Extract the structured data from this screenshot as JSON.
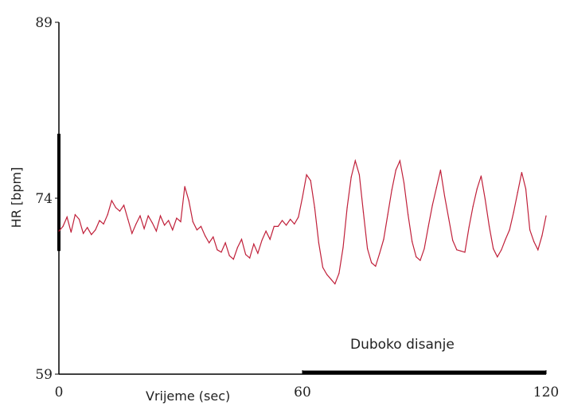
{
  "chart_data": {
    "type": "line",
    "title": "",
    "xlabel": "Vrijeme (sec)",
    "ylabel": "HR [bpm]",
    "xlim": [
      0,
      120
    ],
    "ylim": [
      59,
      89
    ],
    "xticks": [
      "0",
      "60",
      "120"
    ],
    "yticks": [
      "59",
      "74",
      "89"
    ],
    "grid": false,
    "colors": {
      "line": "#c0203a",
      "axis": "#000000",
      "bars": "#000000"
    },
    "annotations": [
      {
        "text": "Duboko disanje",
        "x_start": 60,
        "x_end": 120,
        "y": 59
      }
    ],
    "y_marker": {
      "y_start": 69.5,
      "y_end": 79.5
    },
    "series": [
      {
        "x": [
          0,
          1,
          2,
          3,
          4,
          5,
          6,
          7,
          8,
          9,
          10,
          11,
          12,
          13,
          14,
          15,
          16,
          17,
          18,
          19,
          20,
          21,
          22,
          23,
          24,
          25,
          26,
          27,
          28,
          29,
          30,
          31,
          32,
          33,
          34,
          35,
          36,
          37,
          38,
          39,
          40,
          41,
          42,
          43,
          44,
          45,
          46,
          47,
          48,
          49,
          50,
          51,
          52,
          53,
          54,
          55,
          56,
          57,
          58,
          59,
          60,
          61,
          62,
          63,
          64,
          65,
          66,
          67,
          68,
          69,
          70,
          71,
          72,
          73,
          74,
          75,
          76,
          77,
          78,
          79,
          80,
          81,
          82,
          83,
          84,
          85,
          86,
          87,
          88,
          89,
          90,
          91,
          92,
          93,
          94,
          95,
          96,
          97,
          98,
          99,
          100,
          101,
          102,
          103,
          104,
          105,
          106,
          107,
          108,
          109,
          110,
          111,
          112,
          113,
          114,
          115,
          116,
          117,
          118,
          119,
          120
        ],
        "values": [
          71.2,
          71.6,
          72.4,
          71.1,
          72.6,
          72.2,
          71.0,
          71.5,
          70.9,
          71.3,
          72.1,
          71.8,
          72.6,
          73.8,
          73.2,
          72.9,
          73.4,
          72.2,
          71.0,
          71.8,
          72.5,
          71.4,
          72.5,
          71.9,
          71.2,
          72.5,
          71.7,
          72.1,
          71.3,
          72.3,
          72.0,
          75.0,
          73.8,
          72.0,
          71.3,
          71.6,
          70.8,
          70.2,
          70.7,
          69.6,
          69.4,
          70.2,
          69.1,
          68.8,
          69.8,
          70.5,
          69.2,
          68.9,
          70.1,
          69.3,
          70.4,
          71.2,
          70.5,
          71.6,
          71.6,
          72.1,
          71.7,
          72.2,
          71.8,
          72.4,
          74.1,
          76.0,
          75.5,
          73.2,
          70.2,
          68.1,
          67.5,
          67.1,
          66.7,
          67.6,
          69.8,
          73.2,
          75.8,
          77.2,
          76.0,
          72.8,
          69.7,
          68.5,
          68.2,
          69.3,
          70.5,
          72.6,
          74.7,
          76.4,
          77.2,
          75.3,
          72.6,
          70.3,
          69.0,
          68.7,
          69.7,
          71.6,
          73.4,
          74.9,
          76.4,
          74.2,
          72.3,
          70.4,
          69.6,
          69.5,
          69.4,
          71.5,
          73.3,
          74.8,
          75.9,
          73.9,
          71.6,
          69.7,
          69.0,
          69.6,
          70.5,
          71.3,
          72.8,
          74.5,
          76.2,
          74.8,
          71.3,
          70.3,
          69.6,
          70.8,
          72.5
        ]
      }
    ]
  }
}
